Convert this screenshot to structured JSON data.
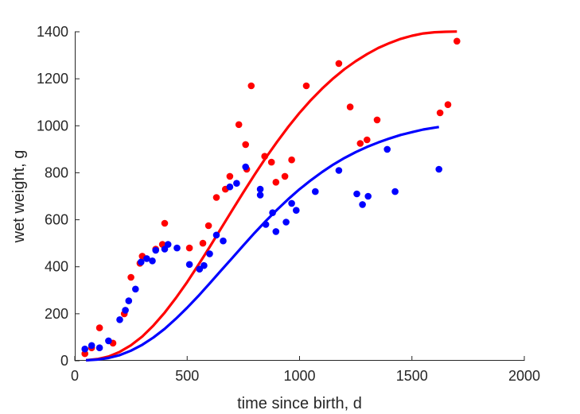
{
  "chart_data": {
    "type": "scatter",
    "title": "",
    "xlabel": "time since birth, d",
    "ylabel": "wet weight, g",
    "xlim": [
      0,
      2000
    ],
    "ylim": [
      0,
      1400
    ],
    "xticks": [
      0,
      500,
      1000,
      1500,
      2000
    ],
    "yticks": [
      0,
      200,
      400,
      600,
      800,
      1000,
      1200,
      1400
    ],
    "grid": false,
    "legend": "none",
    "colors": {
      "red": "#ff0000",
      "blue": "#0000ff",
      "axis": "#262626"
    },
    "scatter_series": [
      {
        "color": "red",
        "points": [
          [
            45,
            30
          ],
          [
            75,
            55
          ],
          [
            110,
            140
          ],
          [
            170,
            75
          ],
          [
            220,
            200
          ],
          [
            250,
            355
          ],
          [
            290,
            415
          ],
          [
            300,
            445
          ],
          [
            360,
            475
          ],
          [
            390,
            495
          ],
          [
            400,
            585
          ],
          [
            510,
            480
          ],
          [
            570,
            500
          ],
          [
            595,
            575
          ],
          [
            630,
            695
          ],
          [
            670,
            730
          ],
          [
            690,
            785
          ],
          [
            730,
            1005
          ],
          [
            760,
            920
          ],
          [
            765,
            815
          ],
          [
            785,
            1170
          ],
          [
            845,
            870
          ],
          [
            875,
            845
          ],
          [
            895,
            760
          ],
          [
            935,
            785
          ],
          [
            965,
            855
          ],
          [
            1030,
            1170
          ],
          [
            1175,
            1265
          ],
          [
            1225,
            1080
          ],
          [
            1270,
            925
          ],
          [
            1300,
            940
          ],
          [
            1345,
            1025
          ],
          [
            1625,
            1055
          ],
          [
            1660,
            1090
          ],
          [
            1700,
            1360
          ]
        ]
      },
      {
        "color": "blue",
        "points": [
          [
            45,
            50
          ],
          [
            75,
            65
          ],
          [
            110,
            55
          ],
          [
            150,
            85
          ],
          [
            200,
            175
          ],
          [
            225,
            215
          ],
          [
            240,
            255
          ],
          [
            270,
            305
          ],
          [
            295,
            420
          ],
          [
            320,
            435
          ],
          [
            345,
            425
          ],
          [
            360,
            470
          ],
          [
            400,
            475
          ],
          [
            415,
            495
          ],
          [
            455,
            480
          ],
          [
            510,
            410
          ],
          [
            555,
            390
          ],
          [
            575,
            405
          ],
          [
            600,
            455
          ],
          [
            630,
            535
          ],
          [
            660,
            510
          ],
          [
            690,
            740
          ],
          [
            720,
            755
          ],
          [
            760,
            825
          ],
          [
            825,
            730
          ],
          [
            825,
            705
          ],
          [
            850,
            580
          ],
          [
            880,
            630
          ],
          [
            895,
            550
          ],
          [
            940,
            590
          ],
          [
            965,
            670
          ],
          [
            985,
            640
          ],
          [
            1070,
            720
          ],
          [
            1175,
            810
          ],
          [
            1255,
            710
          ],
          [
            1280,
            665
          ],
          [
            1305,
            700
          ],
          [
            1390,
            900
          ],
          [
            1425,
            720
          ],
          [
            1620,
            815
          ]
        ]
      }
    ],
    "line_series": [
      {
        "color": "red",
        "points": [
          [
            50,
            2
          ],
          [
            100,
            7
          ],
          [
            150,
            18
          ],
          [
            200,
            38
          ],
          [
            250,
            66
          ],
          [
            300,
            103
          ],
          [
            350,
            150
          ],
          [
            400,
            205
          ],
          [
            450,
            267
          ],
          [
            500,
            335
          ],
          [
            550,
            408
          ],
          [
            600,
            484
          ],
          [
            650,
            562
          ],
          [
            700,
            640
          ],
          [
            750,
            717
          ],
          [
            800,
            792
          ],
          [
            850,
            864
          ],
          [
            900,
            932
          ],
          [
            950,
            996
          ],
          [
            1000,
            1055
          ],
          [
            1050,
            1109
          ],
          [
            1100,
            1158
          ],
          [
            1150,
            1202
          ],
          [
            1200,
            1241
          ],
          [
            1250,
            1275
          ],
          [
            1300,
            1305
          ],
          [
            1350,
            1331
          ],
          [
            1400,
            1352
          ],
          [
            1450,
            1370
          ],
          [
            1500,
            1383
          ],
          [
            1550,
            1393
          ],
          [
            1600,
            1398
          ],
          [
            1650,
            1400
          ],
          [
            1700,
            1401
          ]
        ]
      },
      {
        "color": "blue",
        "points": [
          [
            50,
            2
          ],
          [
            100,
            5
          ],
          [
            150,
            12
          ],
          [
            200,
            24
          ],
          [
            250,
            43
          ],
          [
            300,
            68
          ],
          [
            350,
            99
          ],
          [
            400,
            136
          ],
          [
            450,
            179
          ],
          [
            500,
            226
          ],
          [
            550,
            276
          ],
          [
            600,
            329
          ],
          [
            650,
            383
          ],
          [
            700,
            437
          ],
          [
            750,
            491
          ],
          [
            800,
            544
          ],
          [
            850,
            595
          ],
          [
            900,
            643
          ],
          [
            950,
            688
          ],
          [
            1000,
            730
          ],
          [
            1050,
            768
          ],
          [
            1100,
            803
          ],
          [
            1150,
            835
          ],
          [
            1200,
            863
          ],
          [
            1250,
            888
          ],
          [
            1300,
            910
          ],
          [
            1350,
            929
          ],
          [
            1400,
            946
          ],
          [
            1450,
            961
          ],
          [
            1500,
            973
          ],
          [
            1550,
            984
          ],
          [
            1600,
            992
          ],
          [
            1620,
            995
          ]
        ]
      }
    ]
  }
}
